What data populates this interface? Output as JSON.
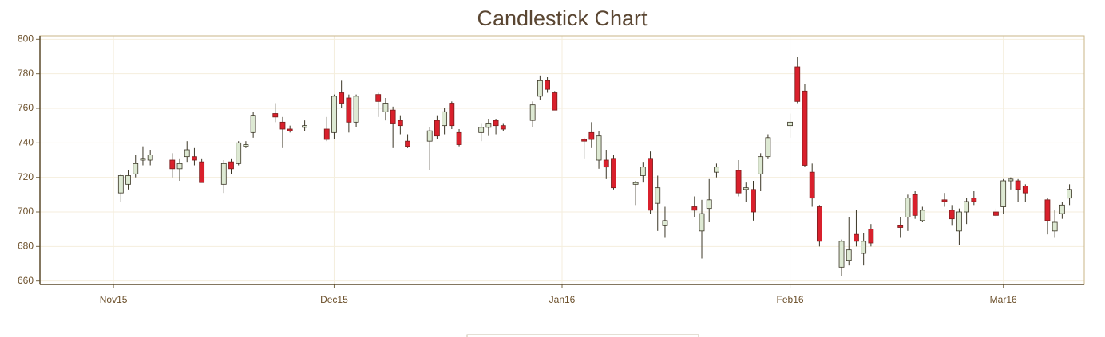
{
  "chart_data": {
    "type": "candlestick",
    "title": "Candlestick Chart",
    "x": [
      "2015-11-02",
      "2015-11-03",
      "2015-11-04",
      "2015-11-05",
      "2015-11-06",
      "2015-11-09",
      "2015-11-10",
      "2015-11-11",
      "2015-11-12",
      "2015-11-13",
      "2015-11-16",
      "2015-11-17",
      "2015-11-18",
      "2015-11-19",
      "2015-11-20",
      "2015-11-23",
      "2015-11-24",
      "2015-11-25",
      "2015-11-27",
      "2015-11-30",
      "2015-12-01",
      "2015-12-02",
      "2015-12-03",
      "2015-12-04",
      "2015-12-07",
      "2015-12-08",
      "2015-12-09",
      "2015-12-10",
      "2015-12-11",
      "2015-12-14",
      "2015-12-15",
      "2015-12-16",
      "2015-12-17",
      "2015-12-18",
      "2015-12-21",
      "2015-12-22",
      "2015-12-23",
      "2015-12-24",
      "2015-12-28",
      "2015-12-29",
      "2015-12-30",
      "2015-12-31",
      "2016-01-04",
      "2016-01-05",
      "2016-01-06",
      "2016-01-07",
      "2016-01-08",
      "2016-01-11",
      "2016-01-12",
      "2016-01-13",
      "2016-01-14",
      "2016-01-15",
      "2016-01-19",
      "2016-01-20",
      "2016-01-21",
      "2016-01-22",
      "2016-01-25",
      "2016-01-26",
      "2016-01-27",
      "2016-01-28",
      "2016-01-29",
      "2016-02-01",
      "2016-02-02",
      "2016-02-03",
      "2016-02-04",
      "2016-02-05",
      "2016-02-08",
      "2016-02-09",
      "2016-02-10",
      "2016-02-11",
      "2016-02-12",
      "2016-02-16",
      "2016-02-17",
      "2016-02-18",
      "2016-02-19",
      "2016-02-22",
      "2016-02-23",
      "2016-02-24",
      "2016-02-25",
      "2016-02-26",
      "2016-02-29",
      "2016-03-01",
      "2016-03-02",
      "2016-03-03",
      "2016-03-04",
      "2016-03-07",
      "2016-03-08",
      "2016-03-09",
      "2016-03-10"
    ],
    "open": [
      711,
      716,
      722,
      730,
      730,
      730,
      725,
      732,
      732,
      729,
      716,
      729,
      728,
      738,
      746,
      757,
      752,
      748,
      749,
      748,
      746,
      769,
      766,
      752,
      768,
      758,
      759,
      753,
      741,
      741,
      753,
      750,
      763,
      746,
      746,
      749,
      753,
      750,
      753,
      767,
      776,
      769,
      742,
      746,
      730,
      730,
      731,
      716,
      721,
      731,
      705,
      692,
      703,
      689,
      702,
      723,
      724,
      713,
      713,
      722,
      732,
      750,
      784,
      770,
      723,
      703,
      668,
      672,
      687,
      676,
      690,
      692,
      697,
      710,
      695,
      707,
      701,
      689,
      700,
      708,
      700,
      703,
      718,
      718,
      715,
      707,
      689,
      699,
      708
    ],
    "high": [
      722,
      724,
      733,
      738,
      736,
      734,
      731,
      741,
      737,
      731,
      730,
      731,
      741,
      741,
      758,
      763,
      755,
      750,
      753,
      755,
      768,
      776,
      768,
      768,
      769,
      766,
      761,
      756,
      745,
      749,
      756,
      760,
      764,
      748,
      751,
      754,
      754,
      751,
      764,
      779,
      778,
      770,
      743,
      752,
      747,
      736,
      733,
      718,
      729,
      735,
      721,
      703,
      709,
      707,
      719,
      728,
      730,
      717,
      718,
      734,
      745,
      757,
      790,
      774,
      728,
      704,
      684,
      697,
      701,
      688,
      693,
      697,
      710,
      712,
      703,
      711,
      704,
      702,
      708,
      712,
      702,
      719,
      720,
      719,
      716,
      708,
      701,
      706,
      716
    ],
    "low": [
      706,
      713,
      720,
      727,
      727,
      720,
      718,
      729,
      727,
      717,
      711,
      722,
      727,
      737,
      743,
      752,
      737,
      746,
      747,
      741,
      742,
      760,
      746,
      749,
      755,
      753,
      737,
      745,
      737,
      724,
      742,
      745,
      748,
      738,
      741,
      744,
      745,
      747,
      749,
      765,
      769,
      759,
      731,
      737,
      725,
      719,
      713,
      704,
      717,
      699,
      689,
      685,
      697,
      673,
      694,
      720,
      709,
      706,
      695,
      712,
      731,
      743,
      763,
      726,
      703,
      680,
      663,
      669,
      680,
      669,
      680,
      685,
      689,
      696,
      694,
      703,
      692,
      681,
      693,
      704,
      697,
      699,
      713,
      706,
      706,
      687,
      685,
      696,
      704
    ],
    "close": [
      721,
      721,
      728,
      731,
      733,
      725,
      728,
      736,
      730,
      717,
      728,
      725,
      740,
      739,
      756,
      755,
      748,
      747,
      750,
      742,
      767,
      763,
      752,
      767,
      764,
      763,
      751,
      750,
      738,
      747,
      744,
      758,
      750,
      739,
      749,
      751,
      750,
      748,
      762,
      776,
      771,
      759,
      741,
      742,
      744,
      726,
      714,
      717,
      726,
      701,
      714,
      695,
      701,
      699,
      707,
      726,
      711,
      714,
      700,
      732,
      743,
      752,
      764,
      727,
      708,
      683,
      683,
      678,
      683,
      683,
      682,
      691,
      708,
      698,
      701,
      706,
      696,
      700,
      706,
      706,
      698,
      718,
      719,
      713,
      711,
      695,
      694,
      704,
      713
    ],
    "up_color": "#dde9d3",
    "down_color": "#d9202c",
    "edge_color": "#3b3626",
    "xlim": [
      "2015-10-22",
      "2016-03-12"
    ],
    "xticks": [
      {
        "value": "2015-11-01",
        "label": "Nov15"
      },
      {
        "value": "2015-12-01",
        "label": "Dec15"
      },
      {
        "value": "2016-01-01",
        "label": "Jan16"
      },
      {
        "value": "2016-02-01",
        "label": "Feb16"
      },
      {
        "value": "2016-03-01",
        "label": "Mar16"
      }
    ],
    "ylim": [
      658,
      802
    ],
    "yticks": [
      660,
      680,
      700,
      720,
      740,
      760,
      780,
      800
    ],
    "grid": true
  }
}
